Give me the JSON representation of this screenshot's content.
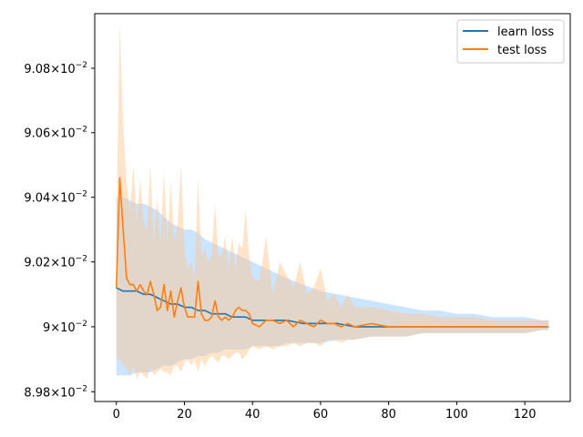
{
  "chart_data": {
    "type": "line",
    "title": "",
    "xlabel": "",
    "ylabel": "",
    "y_scale": "log",
    "xlim": [
      -6.35,
      133.35
    ],
    "ylim": [
      0.08977,
      0.09097
    ],
    "x_ticks": [
      0,
      20,
      40,
      60,
      80,
      100,
      120
    ],
    "x_tick_labels": [
      "0",
      "20",
      "40",
      "60",
      "80",
      "100",
      "120"
    ],
    "y_ticks": [
      0.0898,
      0.09,
      0.0902,
      0.0904,
      0.0906,
      0.0908
    ],
    "y_tick_labels": [
      {
        "mant": "8.98",
        "exp": "−2"
      },
      {
        "mant": "9",
        "exp": "−2"
      },
      {
        "mant": "9.02",
        "exp": "−2"
      },
      {
        "mant": "9.04",
        "exp": "−2"
      },
      {
        "mant": "9.06",
        "exp": "−2"
      },
      {
        "mant": "9.08",
        "exp": "−2"
      }
    ],
    "legend_position": "top-right",
    "grid": false,
    "series": [
      {
        "name": "learn loss",
        "color": "#1f77b4",
        "band_color": "#8cc4ff",
        "x": [
          0,
          2,
          4,
          6,
          8,
          10,
          12,
          14,
          16,
          18,
          20,
          22,
          24,
          26,
          28,
          30,
          32,
          34,
          36,
          38,
          40,
          42,
          44,
          46,
          48,
          50,
          55,
          60,
          65,
          70,
          75,
          80,
          85,
          90,
          95,
          100,
          105,
          110,
          115,
          120,
          125,
          127
        ],
        "mean": [
          0.09012,
          0.09011,
          0.09011,
          0.09011,
          0.0901,
          0.0901,
          0.09009,
          0.09008,
          0.09007,
          0.09007,
          0.09006,
          0.09006,
          0.09005,
          0.09005,
          0.09004,
          0.09004,
          0.09004,
          0.09003,
          0.09003,
          0.09003,
          0.09002,
          0.09002,
          0.09002,
          0.09002,
          0.09002,
          0.09002,
          0.09001,
          0.09001,
          0.09001,
          0.09,
          0.09,
          0.09,
          0.09,
          0.09,
          0.09,
          0.09,
          0.09,
          0.09,
          0.09,
          0.09,
          0.09,
          0.09
        ],
        "upper": [
          0.0904,
          0.0904,
          0.09039,
          0.09038,
          0.09038,
          0.09037,
          0.09036,
          0.09034,
          0.09032,
          0.09031,
          0.0903,
          0.0903,
          0.09029,
          0.09027,
          0.09026,
          0.09025,
          0.09024,
          0.09023,
          0.09022,
          0.09021,
          0.0902,
          0.09019,
          0.09018,
          0.09017,
          0.09016,
          0.09015,
          0.09013,
          0.09011,
          0.0901,
          0.09009,
          0.09008,
          0.09007,
          0.09006,
          0.09005,
          0.09005,
          0.09004,
          0.09004,
          0.09003,
          0.09003,
          0.09003,
          0.09002,
          0.09002
        ],
        "lower": [
          0.08985,
          0.08985,
          0.08985,
          0.08986,
          0.08986,
          0.08986,
          0.08987,
          0.08988,
          0.08988,
          0.08989,
          0.0899,
          0.0899,
          0.08991,
          0.08991,
          0.08992,
          0.08992,
          0.08993,
          0.08993,
          0.08993,
          0.08993,
          0.08994,
          0.08994,
          0.08994,
          0.08994,
          0.08994,
          0.08995,
          0.08995,
          0.08995,
          0.08996,
          0.08996,
          0.08997,
          0.08997,
          0.08997,
          0.08998,
          0.08998,
          0.08998,
          0.08998,
          0.08998,
          0.08998,
          0.08998,
          0.08999,
          0.08999
        ]
      },
      {
        "name": "test loss",
        "color": "#ff7f0e",
        "band_color": "#ffc38a",
        "x": [
          0,
          1,
          2,
          3,
          4,
          5,
          6,
          7,
          8,
          9,
          10,
          11,
          12,
          13,
          14,
          15,
          16,
          17,
          18,
          19,
          20,
          21,
          22,
          23,
          24,
          25,
          26,
          27,
          28,
          29,
          30,
          31,
          32,
          33,
          34,
          35,
          36,
          37,
          38,
          39,
          40,
          42,
          44,
          46,
          48,
          50,
          52,
          54,
          56,
          58,
          60,
          62,
          64,
          66,
          68,
          70,
          75,
          80,
          85,
          90,
          95,
          100,
          105,
          110,
          115,
          120,
          125,
          127
        ],
        "mean": [
          0.09012,
          0.09046,
          0.0903,
          0.09015,
          0.09013,
          0.09013,
          0.09011,
          0.09013,
          0.09011,
          0.0901,
          0.09014,
          0.0901,
          0.09005,
          0.09006,
          0.09013,
          0.09005,
          0.09011,
          0.09003,
          0.09008,
          0.09012,
          0.09006,
          0.09003,
          0.09003,
          0.09003,
          0.09014,
          0.09004,
          0.09002,
          0.09002,
          0.09003,
          0.09008,
          0.09003,
          0.09002,
          0.09003,
          0.09002,
          0.09003,
          0.09005,
          0.09006,
          0.09005,
          0.09005,
          0.09004,
          0.09001,
          0.09,
          0.09002,
          0.09002,
          0.09001,
          0.09002,
          0.09,
          0.09002,
          0.09001,
          0.09,
          0.09002,
          0.09001,
          0.09001,
          0.09,
          0.09001,
          0.09,
          0.09001,
          0.09,
          0.09,
          0.09,
          0.09,
          0.09,
          0.09,
          0.09,
          0.09,
          0.09,
          0.09,
          0.09
        ],
        "upper": [
          0.0903,
          0.09094,
          0.09062,
          0.09045,
          0.09035,
          0.0905,
          0.09032,
          0.09046,
          0.09032,
          0.0903,
          0.0905,
          0.09026,
          0.0904,
          0.09026,
          0.09048,
          0.09026,
          0.09045,
          0.09026,
          0.09032,
          0.0905,
          0.09024,
          0.09018,
          0.0902,
          0.09015,
          0.09046,
          0.09022,
          0.09024,
          0.0902,
          0.09022,
          0.09038,
          0.09022,
          0.09022,
          0.09028,
          0.09018,
          0.09028,
          0.09018,
          0.09026,
          0.09024,
          0.09036,
          0.09022,
          0.09015,
          0.09014,
          0.09028,
          0.0901,
          0.0902,
          0.09016,
          0.09012,
          0.0902,
          0.0901,
          0.09012,
          0.09018,
          0.09008,
          0.0901,
          0.09006,
          0.0901,
          0.09006,
          0.09006,
          0.09005,
          0.09004,
          0.09004,
          0.09003,
          0.09003,
          0.09003,
          0.09002,
          0.09002,
          0.09002,
          0.09002,
          0.09002
        ],
        "lower": [
          0.0899,
          0.0899,
          0.08988,
          0.08987,
          0.08985,
          0.08988,
          0.08984,
          0.08986,
          0.08985,
          0.08984,
          0.08988,
          0.08985,
          0.08986,
          0.08987,
          0.08986,
          0.08986,
          0.08985,
          0.08988,
          0.08988,
          0.08986,
          0.08989,
          0.0899,
          0.08988,
          0.0899,
          0.08986,
          0.0899,
          0.08988,
          0.0899,
          0.08991,
          0.0899,
          0.08989,
          0.08991,
          0.08991,
          0.0899,
          0.08991,
          0.08992,
          0.08992,
          0.0899,
          0.08991,
          0.08993,
          0.08994,
          0.08993,
          0.08994,
          0.08993,
          0.08994,
          0.08994,
          0.08995,
          0.08994,
          0.08995,
          0.08995,
          0.08994,
          0.08996,
          0.08996,
          0.08995,
          0.08996,
          0.08996,
          0.08997,
          0.08997,
          0.08997,
          0.08998,
          0.08998,
          0.08998,
          0.08998,
          0.08998,
          0.08998,
          0.08998,
          0.08999,
          0.08999
        ]
      }
    ]
  }
}
